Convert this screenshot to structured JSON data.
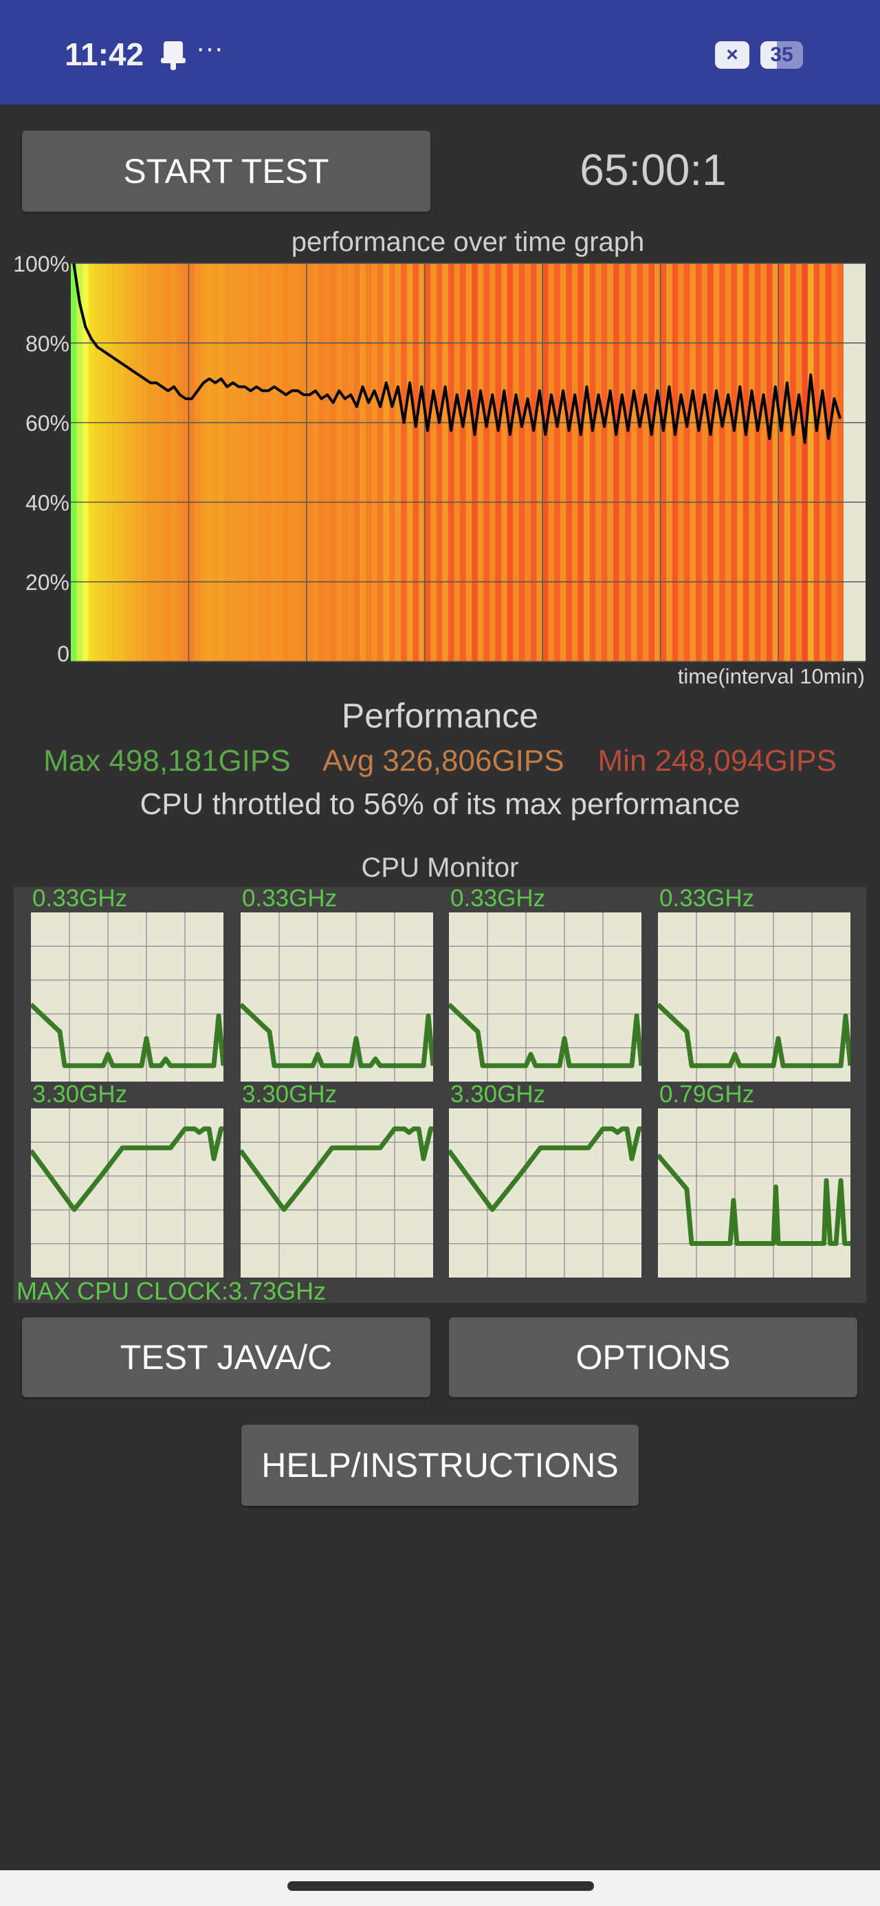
{
  "status_bar": {
    "time": "11:42",
    "more": "···",
    "icons": [
      "notification-icon",
      "no-sim-icon",
      "battery-icon"
    ],
    "no_sim_glyph": "×",
    "battery_level": "35"
  },
  "controls": {
    "start_test": "START TEST",
    "timer": "65:00:1",
    "test_java_c": "TEST JAVA/C",
    "options": "OPTIONS",
    "help": "HELP/INSTRUCTIONS"
  },
  "performance": {
    "title": "Performance",
    "max": "Max 498,181GIPS",
    "avg": "Avg 326,806GIPS",
    "min": "Min 248,094GIPS",
    "throttled": "CPU throttled to 56% of its max performance",
    "colors": {
      "max": "#5ba849",
      "avg": "#c27c45",
      "min": "#b84a3c"
    }
  },
  "chart_data": {
    "type": "bar",
    "title": "performance over time graph",
    "xlabel": "time(interval 10min)",
    "ylabel": "",
    "y_ticks": [
      "0",
      "20%",
      "40%",
      "60%",
      "80%",
      "100%"
    ],
    "ylim": [
      0,
      100
    ],
    "xlim_minutes": [
      0,
      67.4
    ],
    "x_grid_interval_minutes": 10,
    "x_step_minutes": 0.5,
    "grid": true,
    "line_color": "#000000",
    "background": "#e6e6d4",
    "values": [
      100,
      90,
      84,
      81,
      79,
      78,
      77,
      76,
      75,
      74,
      73,
      72,
      71,
      70,
      70,
      69,
      68,
      69,
      67,
      66,
      66,
      68,
      70,
      71,
      70,
      71,
      69,
      70,
      69,
      69,
      68,
      69,
      68,
      68,
      69,
      68,
      67,
      68,
      68,
      67,
      67,
      68,
      66,
      67,
      65,
      68,
      66,
      67,
      64,
      69,
      65,
      68,
      64,
      70,
      64,
      69,
      60,
      70,
      59,
      69,
      58,
      68,
      60,
      69,
      58,
      67,
      59,
      68,
      57,
      68,
      59,
      67,
      58,
      68,
      57,
      67,
      59,
      66,
      58,
      68,
      57,
      67,
      59,
      68,
      58,
      67,
      57,
      69,
      58,
      67,
      59,
      68,
      57,
      67,
      58,
      68,
      59,
      67,
      57,
      68,
      58,
      69,
      57,
      67,
      59,
      68,
      58,
      67,
      57,
      68,
      59,
      67,
      58,
      69,
      57,
      68,
      58,
      67,
      56,
      69,
      58,
      70,
      57,
      67,
      55,
      72,
      58,
      68,
      56,
      66,
      61
    ]
  },
  "cpu_monitor": {
    "title": "CPU Monitor",
    "max_clock": "MAX CPU CLOCK:3.73GHz",
    "max_ghz": 3.73,
    "samples": 40,
    "line_color": "#3a7a25",
    "cores": [
      {
        "label": "0.33GHz",
        "points": [
          [
            0,
            1.7
          ],
          [
            6,
            1.1
          ],
          [
            7,
            0.35
          ],
          [
            15,
            0.35
          ],
          [
            16,
            0.6
          ],
          [
            17,
            0.35
          ],
          [
            23,
            0.35
          ],
          [
            24,
            0.95
          ],
          [
            25,
            0.35
          ],
          [
            27,
            0.35
          ],
          [
            28,
            0.5
          ],
          [
            29,
            0.35
          ],
          [
            38,
            0.35
          ],
          [
            39,
            1.45
          ],
          [
            40,
            0.35
          ]
        ]
      },
      {
        "label": "0.33GHz",
        "points": [
          [
            0,
            1.7
          ],
          [
            6,
            1.1
          ],
          [
            7,
            0.35
          ],
          [
            15,
            0.35
          ],
          [
            16,
            0.6
          ],
          [
            17,
            0.35
          ],
          [
            23,
            0.35
          ],
          [
            24,
            0.95
          ],
          [
            25,
            0.35
          ],
          [
            27,
            0.35
          ],
          [
            28,
            0.5
          ],
          [
            29,
            0.35
          ],
          [
            38,
            0.35
          ],
          [
            39,
            1.45
          ],
          [
            40,
            0.35
          ]
        ]
      },
      {
        "label": "0.33GHz",
        "points": [
          [
            0,
            1.7
          ],
          [
            6,
            1.1
          ],
          [
            7,
            0.35
          ],
          [
            16,
            0.35
          ],
          [
            17,
            0.6
          ],
          [
            18,
            0.35
          ],
          [
            23,
            0.35
          ],
          [
            24,
            0.95
          ],
          [
            25,
            0.35
          ],
          [
            38,
            0.35
          ],
          [
            39,
            1.45
          ],
          [
            40,
            0.35
          ]
        ]
      },
      {
        "label": "0.33GHz",
        "points": [
          [
            0,
            1.7
          ],
          [
            6,
            1.1
          ],
          [
            7,
            0.35
          ],
          [
            15,
            0.35
          ],
          [
            16,
            0.6
          ],
          [
            17,
            0.35
          ],
          [
            24,
            0.35
          ],
          [
            25,
            0.95
          ],
          [
            26,
            0.35
          ],
          [
            38,
            0.35
          ],
          [
            39,
            1.45
          ],
          [
            40,
            0.35
          ]
        ]
      },
      {
        "label": "3.30GHz",
        "points": [
          [
            0,
            2.8
          ],
          [
            9,
            1.5
          ],
          [
            15,
            2.3
          ],
          [
            19,
            2.86
          ],
          [
            29,
            2.86
          ],
          [
            32,
            3.28
          ],
          [
            34,
            3.28
          ],
          [
            35,
            3.2
          ],
          [
            36,
            3.28
          ],
          [
            37,
            3.28
          ],
          [
            38,
            2.62
          ],
          [
            39.5,
            3.28
          ],
          [
            40,
            3.28
          ]
        ]
      },
      {
        "label": "3.30GHz",
        "points": [
          [
            0,
            2.8
          ],
          [
            9,
            1.5
          ],
          [
            15,
            2.3
          ],
          [
            19,
            2.86
          ],
          [
            29,
            2.86
          ],
          [
            32,
            3.28
          ],
          [
            34,
            3.28
          ],
          [
            35,
            3.2
          ],
          [
            36,
            3.28
          ],
          [
            37,
            3.28
          ],
          [
            38,
            2.62
          ],
          [
            39.5,
            3.28
          ],
          [
            40,
            3.28
          ]
        ]
      },
      {
        "label": "3.30GHz",
        "points": [
          [
            0,
            2.8
          ],
          [
            9,
            1.5
          ],
          [
            15,
            2.3
          ],
          [
            19,
            2.86
          ],
          [
            29,
            2.86
          ],
          [
            32,
            3.28
          ],
          [
            34,
            3.28
          ],
          [
            35,
            3.2
          ],
          [
            36,
            3.28
          ],
          [
            37,
            3.28
          ],
          [
            38,
            2.62
          ],
          [
            39.5,
            3.28
          ],
          [
            40,
            3.28
          ]
        ]
      },
      {
        "label": "0.79GHz",
        "points": [
          [
            0,
            2.7
          ],
          [
            6,
            1.95
          ],
          [
            7,
            0.75
          ],
          [
            15,
            0.75
          ],
          [
            15.7,
            1.7
          ],
          [
            16.4,
            0.75
          ],
          [
            24,
            0.75
          ],
          [
            24.5,
            2.0
          ],
          [
            25,
            0.75
          ],
          [
            34.5,
            0.75
          ],
          [
            35,
            2.14
          ],
          [
            35.8,
            0.75
          ],
          [
            37,
            0.75
          ],
          [
            38,
            2.14
          ],
          [
            38.8,
            0.75
          ],
          [
            40,
            0.75
          ]
        ]
      }
    ]
  }
}
